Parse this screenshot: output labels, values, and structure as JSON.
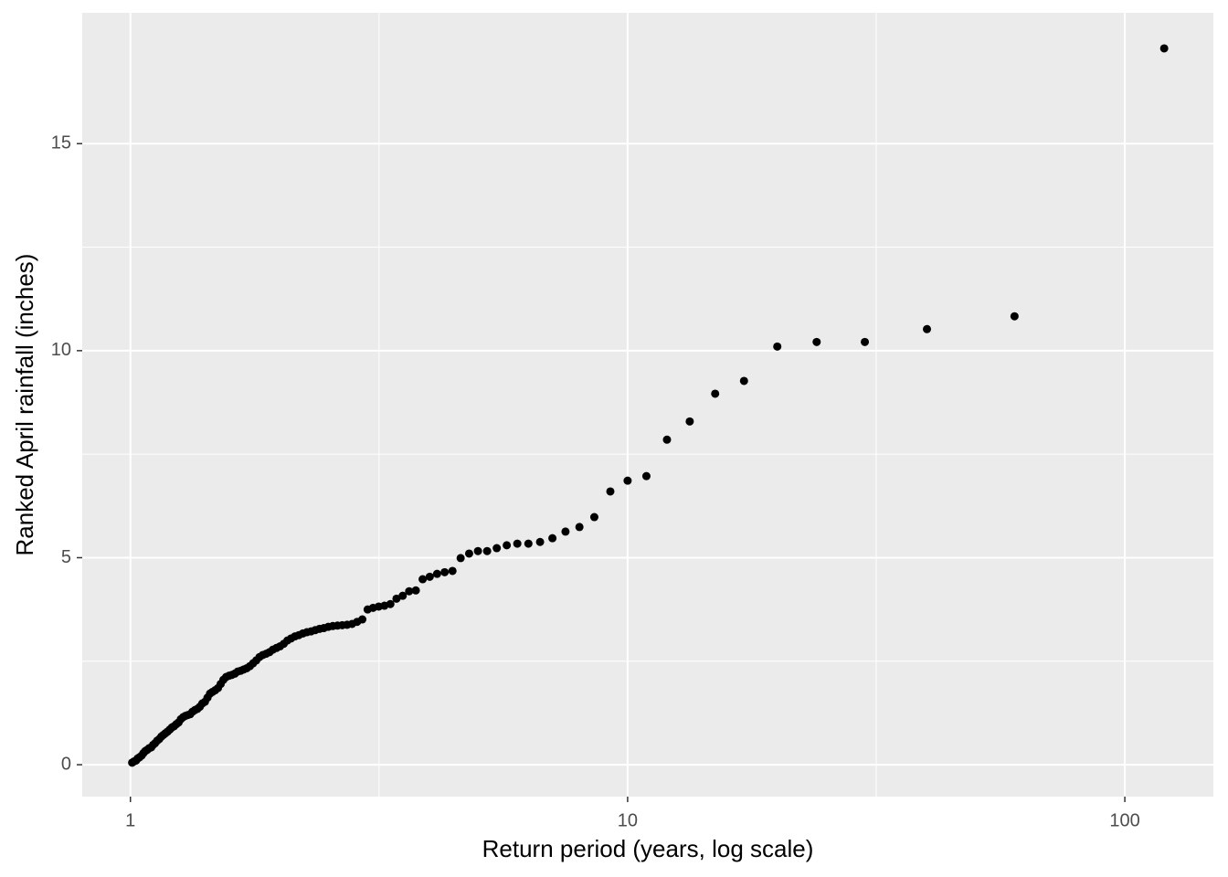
{
  "chart_data": {
    "type": "scatter",
    "x_label": "Return period (years, log scale)",
    "y_label": "Ranked April rainfall (inches)",
    "x_log": true,
    "grid": true,
    "color": "#000000",
    "xlim": [
      0.8,
      150.7
    ],
    "ylim": [
      -0.77,
      18.16
    ],
    "xticks": [
      1,
      10,
      100
    ],
    "yticks": [
      0,
      5,
      10,
      15
    ],
    "x": [
      120,
      60,
      40,
      30,
      24,
      20,
      17.143,
      15,
      13.333,
      12,
      10.909,
      10,
      9.231,
      8.571,
      8,
      7.5,
      7.059,
      6.667,
      6.316,
      6,
      5.714,
      5.455,
      5.217,
      5,
      4.8,
      4.615,
      4.444,
      4.286,
      4.138,
      4,
      3.871,
      3.75,
      3.636,
      3.529,
      3.429,
      3.333,
      3.243,
      3.158,
      3.077,
      3,
      2.927,
      2.857,
      2.791,
      2.727,
      2.667,
      2.609,
      2.553,
      2.5,
      2.449,
      2.4,
      2.353,
      2.308,
      2.264,
      2.222,
      2.182,
      2.143,
      2.105,
      2.069,
      2.034,
      2,
      1.967,
      1.935,
      1.905,
      1.875,
      1.846,
      1.818,
      1.791,
      1.765,
      1.739,
      1.714,
      1.69,
      1.667,
      1.644,
      1.622,
      1.6,
      1.579,
      1.558,
      1.538,
      1.519,
      1.5,
      1.481,
      1.463,
      1.446,
      1.429,
      1.412,
      1.395,
      1.379,
      1.364,
      1.348,
      1.333,
      1.319,
      1.304,
      1.29,
      1.277,
      1.263,
      1.25,
      1.237,
      1.224,
      1.212,
      1.2,
      1.188,
      1.176,
      1.165,
      1.154,
      1.143,
      1.132,
      1.121,
      1.111,
      1.101,
      1.091,
      1.081,
      1.071,
      1.062,
      1.053,
      1.043,
      1.034,
      1.026,
      1.017,
      1.008
    ],
    "values": [
      17.3,
      10.83,
      10.52,
      10.21,
      10.21,
      10.1,
      9.27,
      8.96,
      8.29,
      7.85,
      6.97,
      6.86,
      6.6,
      5.98,
      5.74,
      5.63,
      5.47,
      5.38,
      5.34,
      5.34,
      5.3,
      5.23,
      5.16,
      5.16,
      5.1,
      4.99,
      4.68,
      4.65,
      4.61,
      4.54,
      4.48,
      4.21,
      4.19,
      4.08,
      4.01,
      3.88,
      3.84,
      3.82,
      3.79,
      3.75,
      3.51,
      3.45,
      3.4,
      3.38,
      3.37,
      3.36,
      3.35,
      3.33,
      3.3,
      3.28,
      3.25,
      3.22,
      3.2,
      3.17,
      3.13,
      3.1,
      3.05,
      3.0,
      2.92,
      2.86,
      2.82,
      2.78,
      2.72,
      2.68,
      2.65,
      2.6,
      2.52,
      2.45,
      2.38,
      2.33,
      2.3,
      2.27,
      2.25,
      2.2,
      2.17,
      2.15,
      2.12,
      2.05,
      1.95,
      1.85,
      1.8,
      1.76,
      1.72,
      1.62,
      1.52,
      1.48,
      1.4,
      1.35,
      1.32,
      1.28,
      1.22,
      1.2,
      1.18,
      1.15,
      1.1,
      1.02,
      0.98,
      0.93,
      0.9,
      0.85,
      0.8,
      0.76,
      0.72,
      0.68,
      0.62,
      0.58,
      0.52,
      0.48,
      0.42,
      0.4,
      0.36,
      0.33,
      0.28,
      0.22,
      0.18,
      0.15,
      0.1,
      0.08,
      0.05
    ]
  }
}
